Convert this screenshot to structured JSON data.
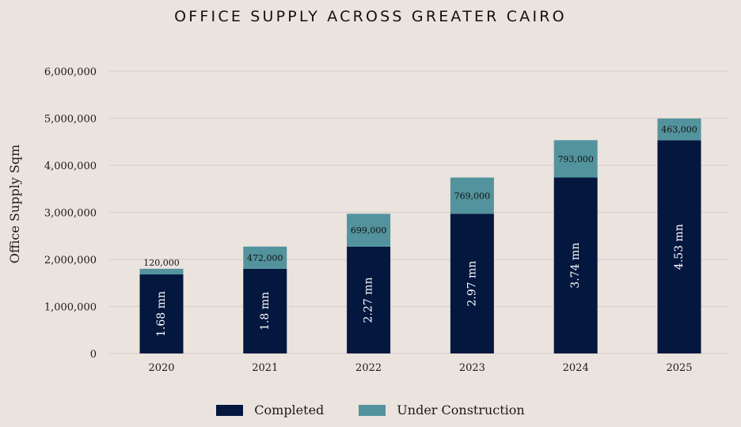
{
  "chart_data": {
    "type": "bar",
    "stacked": true,
    "title": "OFFICE SUPPLY ACROSS GREATER CAIRO",
    "ylabel": "Office Supply Sqm",
    "xlabel": "",
    "ylim": [
      0,
      6000000
    ],
    "yticks": [
      "0",
      "1,000,000",
      "2,000,000",
      "3,000,000",
      "4,000,000",
      "5,000,000",
      "6,000,000"
    ],
    "ytick_values": [
      0,
      1000000,
      2000000,
      3000000,
      4000000,
      5000000,
      6000000
    ],
    "grid": true,
    "legend_position": "bottom",
    "categories": [
      "2020",
      "2021",
      "2022",
      "2023",
      "2024",
      "2025"
    ],
    "series": [
      {
        "name": "Completed",
        "color": "#04173f",
        "values": [
          1680000,
          1800000,
          2270000,
          2970000,
          3740000,
          4530000
        ],
        "labels": [
          "1.68 mn",
          "1.8 mn",
          "2.27 mn",
          "2.97 mn",
          "3.74 mn",
          "4.53 mn"
        ]
      },
      {
        "name": "Under Construction",
        "color": "#53939d",
        "values": [
          120000,
          472000,
          699000,
          769000,
          793000,
          463000
        ],
        "labels": [
          "120,000",
          "472,000",
          "699,000",
          "769,000",
          "793,000",
          "463,000"
        ]
      }
    ]
  }
}
